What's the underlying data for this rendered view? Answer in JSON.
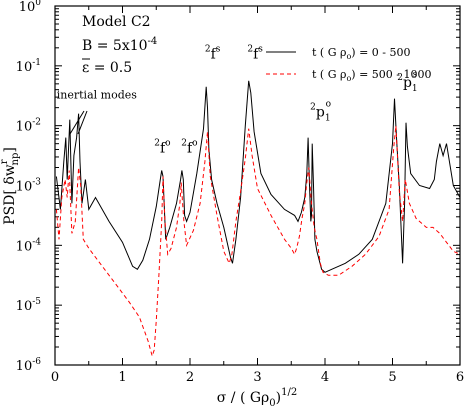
{
  "chart_data": {
    "type": "line",
    "xlim": [
      0,
      6
    ],
    "ylim_log10": [
      -6,
      0
    ],
    "y_scale": "log",
    "x_ticks": [
      0,
      1,
      2,
      3,
      4,
      5,
      6
    ],
    "y_tick_exponents": [
      -6,
      -5,
      -4,
      -3,
      -2,
      -1,
      0
    ],
    "y_tick_base": "10",
    "xlabel": "σ / ( Gρ",
    "xlabel_sub": "0",
    "xlabel_tail": ")",
    "xlabel_sup": "1/2",
    "ylabel_main": "PSD[ δw",
    "ylabel_sup": "r",
    "ylabel_sub": "np",
    "ylabel_tail": "]",
    "legend_position": "top-right",
    "model_box": {
      "line1": "Model C2",
      "line2_prefix": "B = 5x10",
      "line2_exp": "-4",
      "line3_symbol": "ε",
      "line3_rest": " = 0.5"
    },
    "annotations": [
      {
        "id": "inertial",
        "text": "inertial modes",
        "x": 0.62,
        "y_log10": -1.55
      },
      {
        "id": "f1",
        "sup": "2",
        "main": "f",
        "sup2": "o",
        "x": 1.47,
        "y_log10": -2.45
      },
      {
        "id": "f2",
        "sup": "2",
        "main": "f",
        "sup2": "o",
        "x": 1.87,
        "y_log10": -2.45
      },
      {
        "id": "f3",
        "sup": "2",
        "main": "f",
        "sup2": "s",
        "x": 2.22,
        "y_log10": -0.88
      },
      {
        "id": "f4",
        "sup": "2",
        "main": "f",
        "sup2": "s",
        "x": 2.85,
        "y_log10": -0.88
      },
      {
        "id": "p1",
        "sup": "2",
        "main": "p",
        "sub": "1",
        "sup2": "o",
        "x": 3.78,
        "y_log10": -1.85
      },
      {
        "id": "p2",
        "sup": "2",
        "main": "p",
        "sub": "1",
        "sup2": "s",
        "x": 5.07,
        "y_log10": -1.35
      }
    ],
    "series": [
      {
        "legend_prefix": "t ( G ρ",
        "legend_sub": "o",
        "legend_suffix": ") = 0 - 500",
        "color": "#000000",
        "dash": "none",
        "x": [
          0.02,
          0.08,
          0.13,
          0.16,
          0.18,
          0.2,
          0.22,
          0.25,
          0.28,
          0.32,
          0.35,
          0.37,
          0.4,
          0.45,
          0.5,
          0.6,
          0.8,
          1.0,
          1.15,
          1.22,
          1.3,
          1.4,
          1.5,
          1.56,
          1.58,
          1.6,
          1.62,
          1.64,
          1.7,
          1.8,
          1.86,
          1.88,
          1.9,
          1.92,
          1.95,
          2.0,
          2.1,
          2.2,
          2.24,
          2.26,
          2.28,
          2.32,
          2.4,
          2.5,
          2.6,
          2.63,
          2.68,
          2.75,
          2.82,
          2.87,
          2.9,
          2.95,
          3.05,
          3.2,
          3.4,
          3.55,
          3.6,
          3.65,
          3.7,
          3.73,
          3.75,
          3.77,
          3.79,
          3.8,
          3.81,
          3.83,
          3.85,
          3.88,
          3.95,
          4.0,
          4.1,
          4.3,
          4.5,
          4.7,
          4.9,
          5.0,
          5.03,
          5.06,
          5.1,
          5.15,
          5.18,
          5.2,
          5.22,
          5.27,
          5.4,
          5.55,
          5.62,
          5.65,
          5.7,
          5.75,
          5.8,
          5.9,
          6.0
        ],
        "y_log10": [
          -2.85,
          -3.4,
          -2.6,
          -2.2,
          -2.9,
          -2.4,
          -1.9,
          -3.3,
          -2.5,
          -2.2,
          -1.8,
          -2.6,
          -3.3,
          -2.9,
          -3.4,
          -3.2,
          -3.6,
          -3.95,
          -4.35,
          -4.4,
          -4.25,
          -3.9,
          -3.35,
          -2.9,
          -2.75,
          -2.85,
          -3.4,
          -3.9,
          -3.7,
          -3.3,
          -2.9,
          -2.75,
          -2.9,
          -3.5,
          -3.6,
          -3.45,
          -2.8,
          -2.05,
          -1.35,
          -1.7,
          -2.4,
          -2.9,
          -3.3,
          -3.7,
          -4.2,
          -4.3,
          -3.9,
          -3.2,
          -2.0,
          -1.25,
          -1.45,
          -2.1,
          -2.8,
          -3.15,
          -3.4,
          -3.5,
          -3.6,
          -3.45,
          -3.2,
          -2.8,
          -2.2,
          -3.0,
          -3.6,
          -3.5,
          -2.3,
          -3.0,
          -3.9,
          -4.1,
          -4.4,
          -4.45,
          -4.4,
          -4.3,
          -4.15,
          -3.9,
          -3.3,
          -2.3,
          -1.55,
          -2.2,
          -3.0,
          -4.3,
          -3.3,
          -1.95,
          -2.35,
          -2.8,
          -3.0,
          -3.05,
          -2.9,
          -2.6,
          -2.3,
          -2.5,
          -2.3,
          -3.0,
          -3.2
        ]
      },
      {
        "legend_prefix": "t ( G ρ",
        "legend_sub": "o",
        "legend_suffix": ") = 500 - 1000",
        "color": "#ff0000",
        "dash": "4,3",
        "x": [
          0.02,
          0.06,
          0.1,
          0.15,
          0.18,
          0.21,
          0.25,
          0.3,
          0.35,
          0.38,
          0.42,
          0.5,
          0.7,
          0.9,
          1.1,
          1.25,
          1.38,
          1.44,
          1.47,
          1.5,
          1.54,
          1.58,
          1.6,
          1.63,
          1.67,
          1.72,
          1.8,
          1.85,
          1.87,
          1.89,
          1.91,
          1.95,
          2.05,
          2.15,
          2.22,
          2.26,
          2.3,
          2.4,
          2.5,
          2.58,
          2.62,
          2.68,
          2.75,
          2.82,
          2.87,
          2.92,
          3.0,
          3.2,
          3.4,
          3.5,
          3.55,
          3.58,
          3.62,
          3.66,
          3.7,
          3.73,
          3.76,
          3.8,
          3.84,
          3.88,
          3.93,
          3.97,
          4.05,
          4.2,
          4.4,
          4.6,
          4.8,
          4.95,
          5.02,
          5.05,
          5.1,
          5.15,
          5.19,
          5.25,
          5.35,
          5.5,
          5.6,
          5.7,
          5.8,
          5.9,
          6.0
        ],
        "y_log10": [
          -3.4,
          -3.9,
          -3.2,
          -2.9,
          -3.2,
          -2.75,
          -3.8,
          -3.6,
          -2.7,
          -3.0,
          -3.9,
          -4.05,
          -4.35,
          -4.65,
          -4.95,
          -5.2,
          -5.6,
          -5.85,
          -5.75,
          -5.25,
          -4.5,
          -3.6,
          -2.85,
          -3.6,
          -4.15,
          -4.05,
          -3.7,
          -3.3,
          -2.95,
          -3.3,
          -3.6,
          -4.0,
          -3.75,
          -3.3,
          -2.6,
          -2.1,
          -2.85,
          -3.5,
          -4.1,
          -4.3,
          -4.15,
          -3.6,
          -3.1,
          -2.55,
          -2.05,
          -2.5,
          -3.05,
          -3.5,
          -3.9,
          -4.05,
          -4.15,
          -4.05,
          -3.85,
          -3.55,
          -3.3,
          -2.95,
          -2.7,
          -3.3,
          -3.7,
          -3.9,
          -4.3,
          -4.45,
          -4.5,
          -4.5,
          -4.35,
          -4.15,
          -3.85,
          -3.4,
          -2.35,
          -2.0,
          -3.1,
          -3.6,
          -2.9,
          -3.3,
          -3.55,
          -3.7,
          -3.7,
          -3.8,
          -3.95,
          -4.1,
          -4.15
        ]
      }
    ]
  }
}
